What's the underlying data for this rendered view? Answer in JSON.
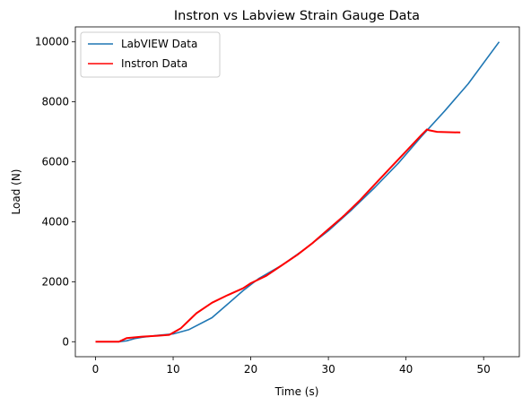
{
  "chart_data": {
    "type": "line",
    "title": "Instron vs Labview Strain Gauge Data",
    "xlabel": "Time (s)",
    "ylabel": "Load (N)",
    "xlim": [
      -2.6,
      54.6
    ],
    "ylim": [
      -500,
      10500
    ],
    "xticks": [
      0,
      10,
      20,
      30,
      40,
      50
    ],
    "yticks": [
      0,
      2000,
      4000,
      6000,
      8000,
      10000
    ],
    "grid": false,
    "legend_position": "upper-left",
    "series": [
      {
        "name": "LabVIEW Data",
        "color": "#1f77b4",
        "x": [
          0,
          3,
          4,
          5,
          6,
          8,
          10,
          12,
          15,
          17,
          19,
          21,
          24,
          27,
          30,
          33,
          36,
          39,
          42,
          45,
          48,
          52
        ],
        "y": [
          0,
          0,
          30,
          100,
          150,
          210,
          260,
          400,
          800,
          1250,
          1700,
          2100,
          2550,
          3100,
          3700,
          4400,
          5150,
          5950,
          6850,
          7700,
          8600,
          10000
        ]
      },
      {
        "name": "Instron Data",
        "color": "#ff0000",
        "x": [
          0,
          3,
          4,
          6,
          8,
          9.5,
          11,
          12,
          13,
          15,
          17,
          19,
          20,
          22,
          24,
          26,
          28,
          30,
          32,
          34,
          36,
          38,
          40,
          42,
          42.7,
          43,
          44,
          45,
          47
        ],
        "y": [
          0,
          0,
          120,
          170,
          200,
          230,
          450,
          700,
          950,
          1300,
          1550,
          1780,
          1950,
          2200,
          2550,
          2900,
          3300,
          3750,
          4200,
          4700,
          5250,
          5800,
          6350,
          6900,
          7080,
          7050,
          7000,
          6990,
          6980
        ]
      }
    ]
  }
}
